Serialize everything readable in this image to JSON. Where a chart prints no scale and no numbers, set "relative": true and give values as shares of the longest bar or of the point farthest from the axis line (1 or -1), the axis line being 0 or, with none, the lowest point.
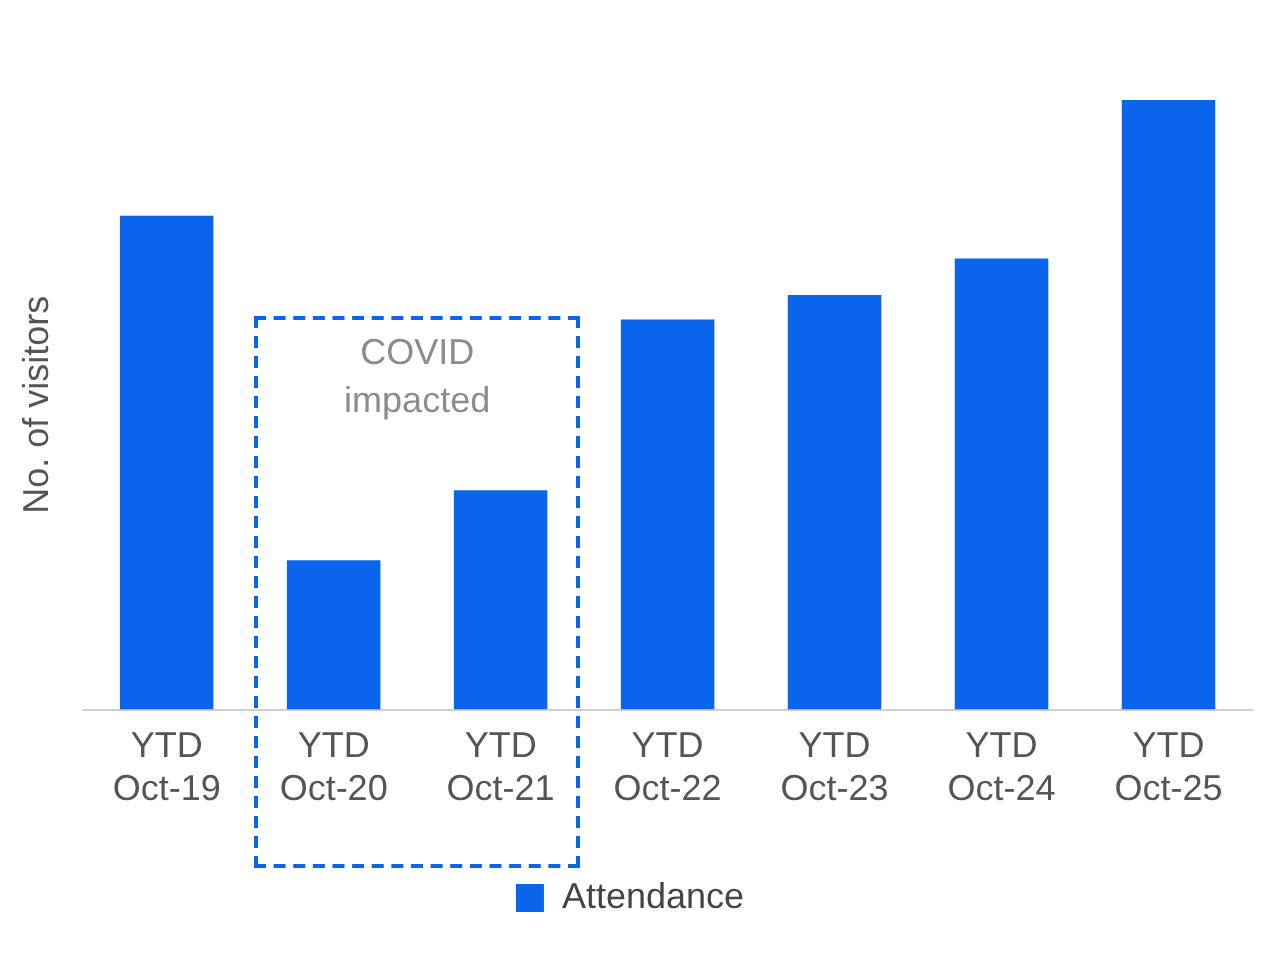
{
  "chart_data": {
    "type": "bar",
    "relative": true,
    "ylabel": "No. of visitors",
    "categories": [
      "YTD Oct-19",
      "YTD Oct-20",
      "YTD Oct-21",
      "YTD Oct-22",
      "YTD Oct-23",
      "YTD Oct-24",
      "YTD Oct-25"
    ],
    "series": [
      {
        "name": "Attendance",
        "color": "#0a64ec",
        "values": [
          0.81,
          0.245,
          0.36,
          0.64,
          0.68,
          0.74,
          1
        ]
      }
    ],
    "annotations": [
      "COVID impacted"
    ],
    "grid": false,
    "legend": "bottom"
  }
}
